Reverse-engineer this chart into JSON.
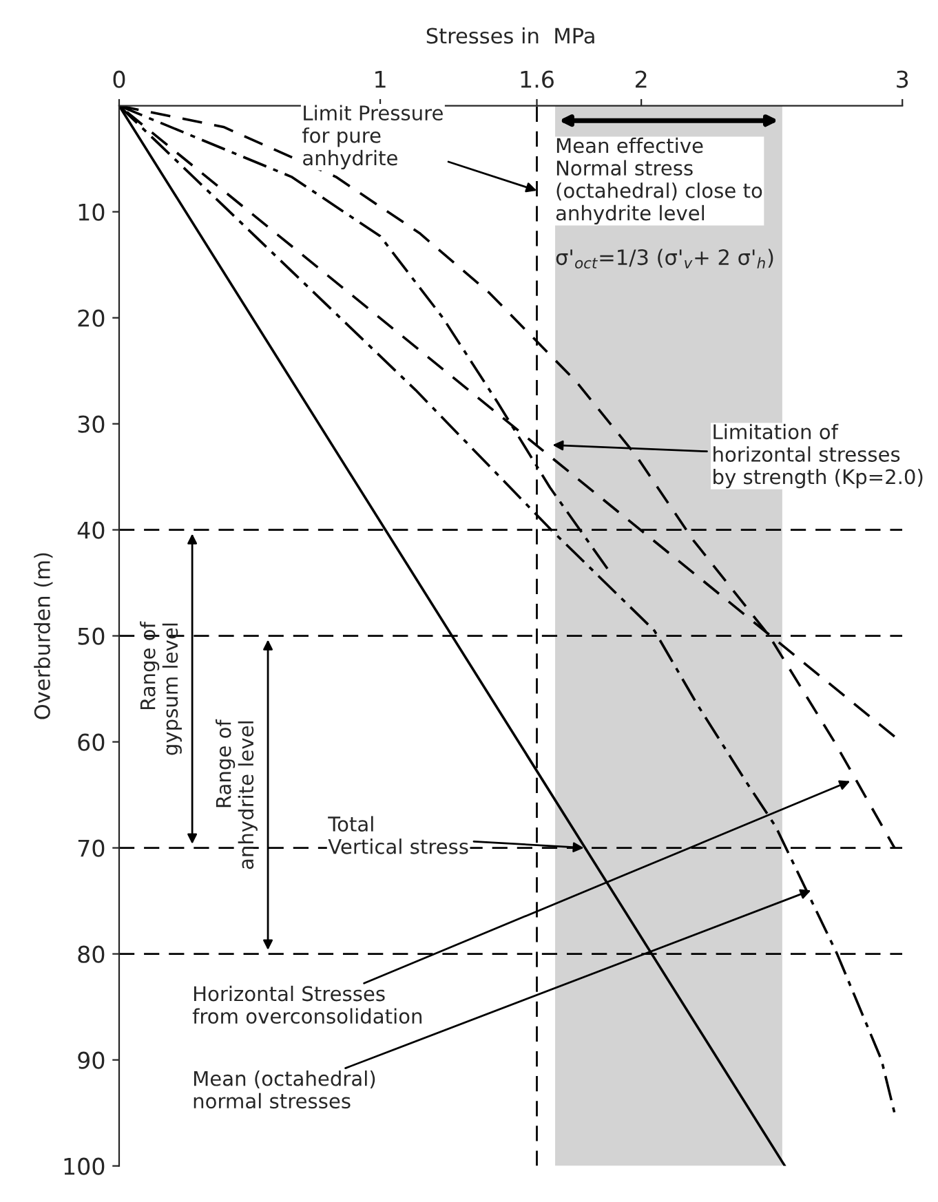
{
  "chart_data": {
    "type": "line",
    "xlabel": "Stresses in  MPa",
    "ylabel": "Overburden (m)",
    "xlim": [
      0,
      3
    ],
    "ylim": [
      100,
      0
    ],
    "xticks": [
      0,
      1,
      1.6,
      2,
      3
    ],
    "yticks": [
      10,
      20,
      30,
      40,
      50,
      60,
      70,
      80,
      90,
      100
    ],
    "grid": false,
    "legend": false,
    "series": [
      {
        "color": "#000000",
        "line_style": "solid",
        "x": [
          0,
          2.55
        ],
        "values": [
          0,
          100
        ]
      },
      {
        "color": "#000000",
        "line_style": "dashed",
        "x": [
          0,
          0.4,
          0.83,
          1.15,
          1.42,
          1.75,
          1.98,
          2.2,
          2.49,
          2.74,
          2.97
        ],
        "values": [
          0,
          2,
          6.7,
          12,
          17.7,
          26,
          33,
          41,
          50,
          60,
          70
        ]
      },
      {
        "color": "#000000",
        "line_style": "dashed",
        "x": [
          2.97,
          0
        ],
        "values": [
          59.5,
          0
        ]
      },
      {
        "color": "#000000",
        "line_style": "dashdot",
        "x": [
          0,
          0.66,
          1.0,
          1.24,
          1.45,
          1.65,
          1.88
        ],
        "values": [
          0,
          6.7,
          12.3,
          20,
          28,
          36,
          44
        ]
      },
      {
        "color": "#000000",
        "line_style": "dashdot",
        "x": [
          0,
          1.135,
          1.655,
          2.05,
          2.215,
          2.4,
          2.515,
          2.75,
          2.92,
          2.97
        ],
        "values": [
          0,
          26.8,
          40,
          49.5,
          56.5,
          63.7,
          68,
          80,
          90,
          95
        ]
      }
    ],
    "ref_lines": [
      {
        "axis": "x",
        "value": 1.6,
        "line_style": "dashed",
        "color": "#000000"
      },
      {
        "axis": "y",
        "value": 40,
        "line_style": "dashed",
        "color": "#000000"
      },
      {
        "axis": "y",
        "value": 50,
        "line_style": "dashed",
        "color": "#000000"
      },
      {
        "axis": "y",
        "value": 70,
        "line_style": "dashed",
        "color": "#000000"
      },
      {
        "axis": "y",
        "value": 80,
        "line_style": "dashed",
        "color": "#000000"
      }
    ],
    "bands": [
      {
        "axis": "x",
        "from": 1.67,
        "to": 2.54,
        "color": "#b5b5b5",
        "label": "Mean effective\nNormal stress\n(octahedral) close to\nanhydrite level"
      }
    ],
    "annotations": [
      "Range of\ngypsum level",
      "Range of\nanhydrite level",
      {
        "text": "Limit Pressure\nfor pure\nanhydrite",
        "x": 1.6,
        "y": 8
      },
      "σ'$_{oct}$=1/3 (σ'$_{v}$+ 2 σ'$_{h}$)",
      {
        "text": "Limitation of\nhorizontal stresses\nby strength (Kp=2.0)",
        "x": 1.66,
        "y": 32
      },
      {
        "text": "Total\nVertical stress",
        "x": 1.78,
        "y": 70
      },
      {
        "text": "Horizontal Stresses\nfrom overconsolidation",
        "x": 2.8,
        "y": 63.7
      },
      {
        "text": "Mean (octahedral)\nnormal stresses",
        "x": 2.65,
        "y": 74
      }
    ]
  }
}
